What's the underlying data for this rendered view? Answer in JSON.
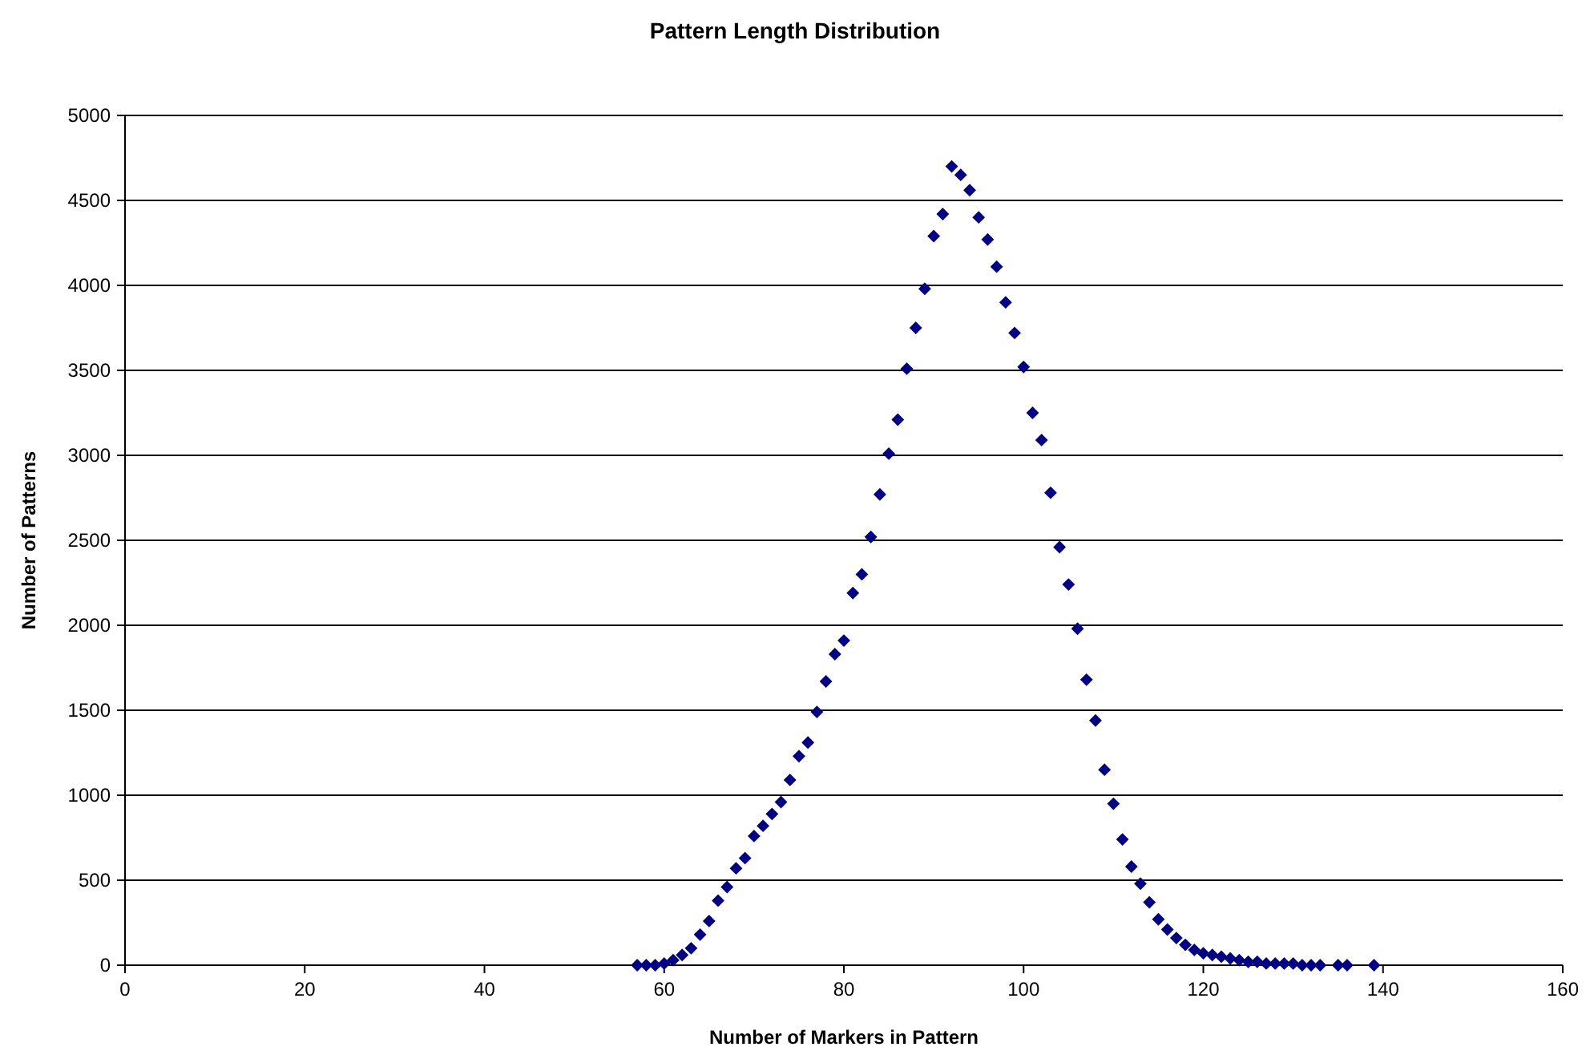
{
  "chart_data": {
    "type": "scatter",
    "title": "Pattern Length Distribution",
    "xlabel": "Number of Markers in Pattern",
    "ylabel": "Number of Patterns",
    "x": [
      57,
      58,
      59,
      60,
      61,
      62,
      63,
      64,
      65,
      66,
      67,
      68,
      69,
      70,
      71,
      72,
      73,
      74,
      75,
      76,
      77,
      78,
      79,
      80,
      81,
      82,
      83,
      84,
      85,
      86,
      87,
      88,
      89,
      90,
      91,
      92,
      93,
      94,
      95,
      96,
      97,
      98,
      99,
      100,
      101,
      102,
      103,
      104,
      105,
      106,
      107,
      108,
      109,
      110,
      111,
      112,
      113,
      114,
      115,
      116,
      117,
      118,
      119,
      120,
      121,
      122,
      123,
      124,
      125,
      126,
      127,
      128,
      129,
      130,
      131,
      132,
      133,
      135,
      136,
      139
    ],
    "series": [
      {
        "color": "#000080",
        "values": [
          0,
          0,
          0,
          10,
          30,
          60,
          100,
          180,
          260,
          380,
          460,
          570,
          630,
          760,
          820,
          890,
          960,
          1090,
          1230,
          1310,
          1490,
          1670,
          1830,
          1910,
          2190,
          2300,
          2520,
          2770,
          3010,
          3210,
          3510,
          3750,
          3980,
          4290,
          4420,
          4700,
          4650,
          4560,
          4400,
          4270,
          4110,
          3900,
          3720,
          3520,
          3250,
          3090,
          2780,
          2460,
          2240,
          1980,
          1680,
          1440,
          1150,
          950,
          740,
          580,
          480,
          370,
          270,
          210,
          160,
          120,
          90,
          70,
          60,
          50,
          40,
          30,
          20,
          20,
          10,
          10,
          10,
          10,
          0,
          0,
          0,
          0,
          0,
          0
        ]
      }
    ],
    "xlim": [
      0,
      160
    ],
    "xticks": [
      0,
      20,
      40,
      60,
      80,
      100,
      120,
      140,
      160
    ],
    "ylim": [
      0,
      5000
    ],
    "yticks": [
      0,
      500,
      1000,
      1500,
      2000,
      2500,
      3000,
      3500,
      4000,
      4500,
      5000
    ],
    "grid": "y",
    "marker": "diamond"
  }
}
